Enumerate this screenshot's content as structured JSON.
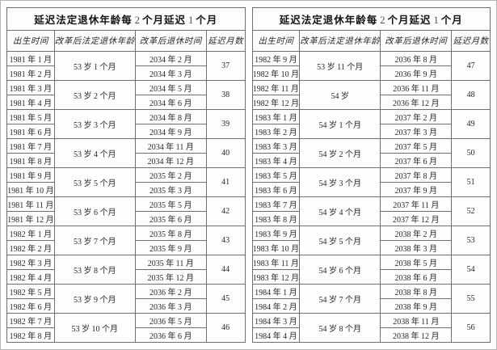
{
  "tables": [
    {
      "title_parts": {
        "p1": "延迟法定退休年龄每",
        "n1": "2",
        "p2": "个月延迟",
        "n2": "1",
        "p3": "个月"
      },
      "columns": [
        "出生时间",
        "改革后法定退休年龄",
        "改革后退休时间",
        "延迟月数"
      ],
      "groups": [
        {
          "age": "53 岁 1 个月",
          "delay": "37",
          "rows": [
            [
              "1981 年 1 月",
              "2034 年 2 月"
            ],
            [
              "1981 年 2 月",
              "2034 年 3 月"
            ]
          ]
        },
        {
          "age": "53 岁 2 个月",
          "delay": "38",
          "rows": [
            [
              "1981 年 3 月",
              "2034 年 5 月"
            ],
            [
              "1981 年 4 月",
              "2034 年 6 月"
            ]
          ]
        },
        {
          "age": "53 岁 3 个月",
          "delay": "39",
          "rows": [
            [
              "1981 年 5 月",
              "2034 年 8 月"
            ],
            [
              "1981 年 6 月",
              "2034 年 9 月"
            ]
          ]
        },
        {
          "age": "53 岁 4 个月",
          "delay": "40",
          "rows": [
            [
              "1981 年 7 月",
              "2034 年 11 月"
            ],
            [
              "1981 年 8 月",
              "2034 年 12 月"
            ]
          ]
        },
        {
          "age": "53 岁 5 个月",
          "delay": "41",
          "rows": [
            [
              "1981 年 9 月",
              "2035 年 2 月"
            ],
            [
              "1981 年 10 月",
              "2035 年 3 月"
            ]
          ]
        },
        {
          "age": "53 岁 6 个月",
          "delay": "42",
          "rows": [
            [
              "1981 年 11 月",
              "2035 年 5 月"
            ],
            [
              "1981 年 12 月",
              "2035 年 6 月"
            ]
          ]
        },
        {
          "age": "53 岁 7 个月",
          "delay": "43",
          "rows": [
            [
              "1982 年 1 月",
              "2035 年 8 月"
            ],
            [
              "1982 年 2 月",
              "2035 年 9 月"
            ]
          ]
        },
        {
          "age": "53 岁 8 个月",
          "delay": "44",
          "rows": [
            [
              "1982 年 3 月",
              "2035 年 11 月"
            ],
            [
              "1982 年 4 月",
              "2035 年 12 月"
            ]
          ]
        },
        {
          "age": "53 岁 9 个月",
          "delay": "45",
          "rows": [
            [
              "1982 年 5 月",
              "2036 年 2 月"
            ],
            [
              "1982 年 6 月",
              "2036 年 3 月"
            ]
          ]
        },
        {
          "age": "53 岁 10 个月",
          "delay": "46",
          "rows": [
            [
              "1982 年 7 月",
              "2036 年 5 月"
            ],
            [
              "1982 年 8 月",
              "2036 年 6 月"
            ]
          ]
        }
      ]
    },
    {
      "title_parts": {
        "p1": "延迟法定退休年龄每",
        "n1": "2",
        "p2": "个月延迟",
        "n2": "1",
        "p3": "个月"
      },
      "columns": [
        "出生时间",
        "改革后法定退休年龄",
        "改革后退休时间",
        "延迟月数"
      ],
      "groups": [
        {
          "age": "53 岁 11 个月",
          "delay": "47",
          "rows": [
            [
              "1982 年 9 月",
              "2036 年 8 月"
            ],
            [
              "1982 年 10 月",
              "2036 年 9 月"
            ]
          ]
        },
        {
          "age": "54 岁",
          "delay": "48",
          "rows": [
            [
              "1982 年 11 月",
              "2036 年 11 月"
            ],
            [
              "1982 年 12 月",
              "2036 年 12 月"
            ]
          ]
        },
        {
          "age": "54 岁 1 个月",
          "delay": "49",
          "rows": [
            [
              "1983 年 1 月",
              "2037 年 2 月"
            ],
            [
              "1983 年 2 月",
              "2037 年 3 月"
            ]
          ]
        },
        {
          "age": "54 岁 2 个月",
          "delay": "50",
          "rows": [
            [
              "1983 年 3 月",
              "2037 年 5 月"
            ],
            [
              "1983 年 4 月",
              "2037 年 6 月"
            ]
          ]
        },
        {
          "age": "54 岁 3 个月",
          "delay": "51",
          "rows": [
            [
              "1983 年 5 月",
              "2037 年 8 月"
            ],
            [
              "1983 年 6 月",
              "2037 年 9 月"
            ]
          ]
        },
        {
          "age": "54 岁 4 个月",
          "delay": "52",
          "rows": [
            [
              "1983 年 7 月",
              "2037 年 11 月"
            ],
            [
              "1983 年 8 月",
              "2037 年 12 月"
            ]
          ]
        },
        {
          "age": "54 岁 5 个月",
          "delay": "53",
          "rows": [
            [
              "1983 年 9 月",
              "2038 年 2 月"
            ],
            [
              "1983 年 10 月",
              "2038 年 3 月"
            ]
          ]
        },
        {
          "age": "54 岁 6 个月",
          "delay": "54",
          "rows": [
            [
              "1983 年 11 月",
              "2038 年 5 月"
            ],
            [
              "1983 年 12 月",
              "2038 年 6 月"
            ]
          ]
        },
        {
          "age": "54 岁 7 个月",
          "delay": "55",
          "rows": [
            [
              "1984 年 1 月",
              "2038 年 8 月"
            ],
            [
              "1984 年 2 月",
              "2038 年 9 月"
            ]
          ]
        },
        {
          "age": "54 岁 8 个月",
          "delay": "56",
          "rows": [
            [
              "1984 年 3 月",
              "2038 年 11 月"
            ],
            [
              "1984 年 4 月",
              "2038 年 12 月"
            ]
          ]
        }
      ]
    }
  ]
}
